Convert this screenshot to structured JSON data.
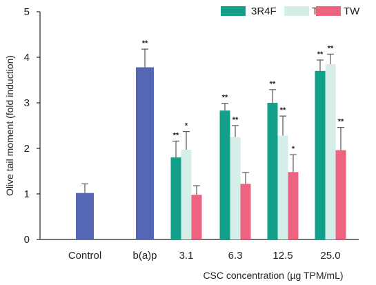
{
  "chart_data": {
    "type": "bar",
    "title": "",
    "xlabel": "CSC concentration (µg TPM/mL)",
    "ylabel": "Olive tail moment (fold induction)",
    "ylim": [
      0,
      5
    ],
    "yticks": [
      "0",
      "1",
      "2",
      "3",
      "4",
      "5"
    ],
    "grid": false,
    "legend": "top-right",
    "categories": [
      "Control",
      "b(a)p",
      "3.1",
      "6.3",
      "12.5",
      "25.0"
    ],
    "single_series": [
      {
        "category": "Control",
        "value": 1.02,
        "error": 0.2,
        "sig": "",
        "color": "#5566b5"
      },
      {
        "category": "b(a)p",
        "value": 3.78,
        "error": 0.4,
        "sig": "**",
        "color": "#5566b5"
      }
    ],
    "series": [
      {
        "name": "3R4F",
        "color": "#12a08a",
        "values": [
          null,
          null,
          1.8,
          2.83,
          3.0,
          3.7
        ],
        "errors": [
          null,
          null,
          0.36,
          0.16,
          0.29,
          0.24
        ],
        "sig": [
          "",
          "",
          "**",
          "**",
          "**",
          "**"
        ]
      },
      {
        "name": "TL",
        "color": "#d6eeea",
        "values": [
          null,
          null,
          1.97,
          2.25,
          2.28,
          3.85
        ],
        "errors": [
          null,
          null,
          0.4,
          0.25,
          0.43,
          0.22
        ],
        "sig": [
          "",
          "",
          "*",
          "**",
          "**",
          "**"
        ]
      },
      {
        "name": "TW",
        "color": "#ee6480",
        "values": [
          null,
          null,
          0.98,
          1.22,
          1.48,
          1.96
        ],
        "errors": [
          null,
          null,
          0.2,
          0.25,
          0.38,
          0.5
        ],
        "sig": [
          "",
          "",
          "",
          "",
          "*",
          "**"
        ]
      }
    ]
  }
}
